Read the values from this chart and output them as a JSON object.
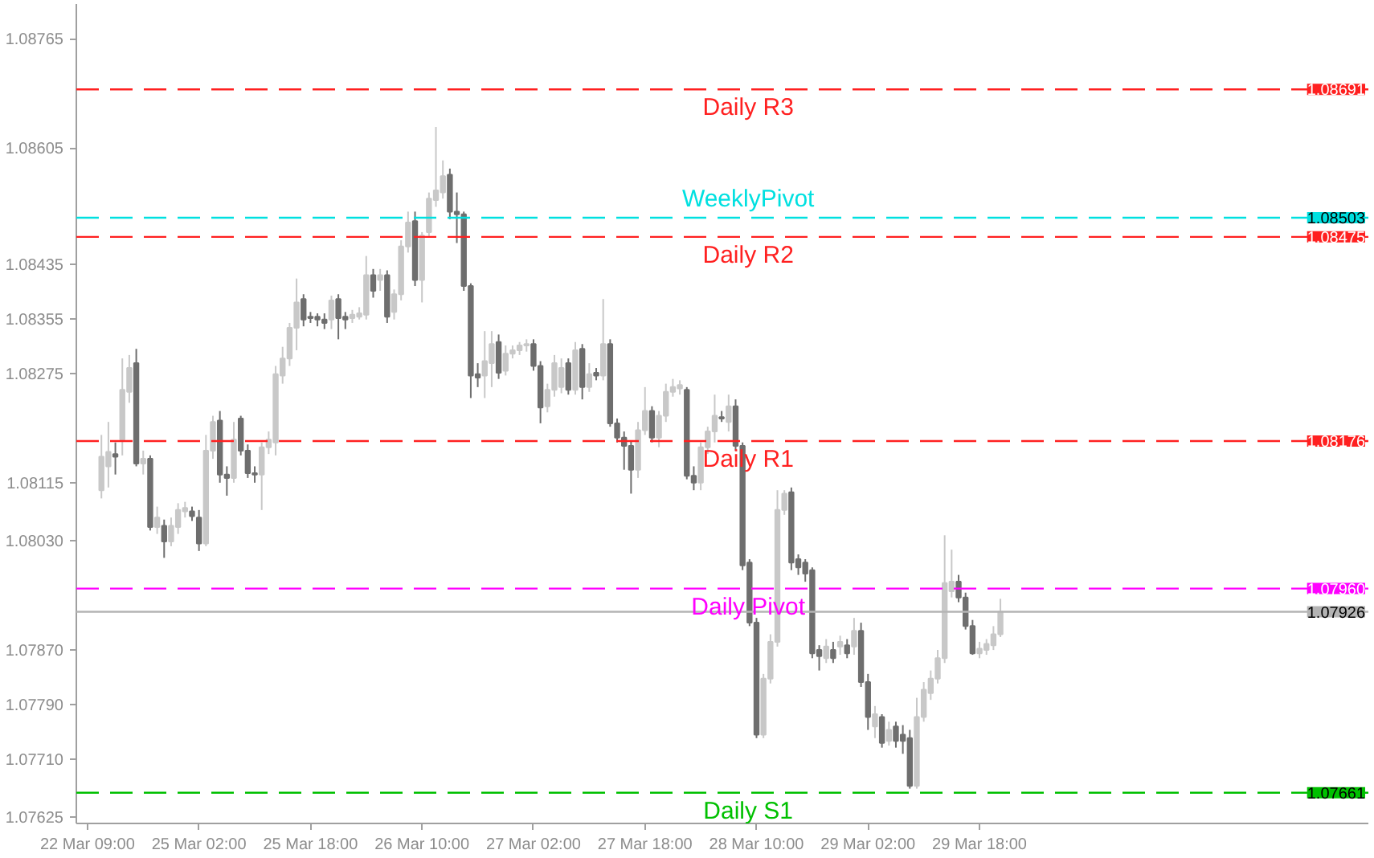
{
  "chart_data": {
    "type": "candlestick",
    "categories": [
      "22 Mar 09:00",
      null,
      null,
      null,
      null,
      null,
      null,
      null,
      null,
      null,
      null,
      null,
      null,
      null,
      null,
      null,
      "25 Mar 02:00",
      null,
      null,
      null,
      null,
      null,
      null,
      null,
      null,
      null,
      null,
      null,
      null,
      null,
      null,
      null,
      "25 Mar 18:00",
      null,
      null,
      null,
      null,
      null,
      null,
      null,
      null,
      null,
      null,
      null,
      null,
      null,
      null,
      null,
      "26 Mar 10:00",
      null,
      null,
      null,
      null,
      null,
      null,
      null,
      null,
      null,
      null,
      null,
      null,
      null,
      null,
      null,
      "27 Mar 02:00",
      null,
      null,
      null,
      null,
      null,
      null,
      null,
      null,
      null,
      null,
      null,
      null,
      null,
      null,
      null,
      "27 Mar 18:00",
      null,
      null,
      null,
      null,
      null,
      null,
      null,
      null,
      null,
      null,
      null,
      null,
      null,
      null,
      null,
      "28 Mar 10:00",
      null,
      null,
      null,
      null,
      null,
      null,
      null,
      null,
      null,
      null,
      null,
      null,
      null,
      null,
      null,
      "29 Mar 02:00",
      null,
      null,
      null,
      null,
      null,
      null,
      null,
      null,
      null,
      null,
      null,
      null,
      null,
      null,
      null,
      "29 Mar 18:00",
      null,
      null,
      null
    ],
    "ohlc": [
      null,
      null,
      [
        1.08104,
        1.08185,
        1.08092,
        1.08153
      ],
      [
        1.08139,
        1.08204,
        1.08108,
        1.0816
      ],
      [
        1.08157,
        1.08174,
        1.08127,
        1.08153
      ],
      [
        1.08178,
        1.08297,
        1.08155,
        1.08251
      ],
      [
        1.08248,
        1.08302,
        1.08232,
        1.08283
      ],
      [
        1.0829,
        1.08311,
        1.08139,
        1.08143
      ],
      [
        1.08143,
        1.08162,
        1.08127,
        1.0815
      ],
      [
        1.0815,
        1.08155,
        1.08045,
        1.0805
      ],
      [
        1.0805,
        1.0808,
        1.0804,
        1.08064
      ],
      [
        1.08052,
        1.08061,
        1.08005,
        1.08029
      ],
      [
        1.08029,
        1.08064,
        1.08022,
        1.08052
      ],
      [
        1.0805,
        1.08085,
        1.0804,
        1.08075
      ],
      [
        1.08073,
        1.08087,
        1.08064,
        1.08078
      ],
      [
        1.08073,
        1.0808,
        1.08059,
        1.08066
      ],
      [
        1.08064,
        1.08075,
        1.08015,
        1.08026
      ],
      [
        1.08026,
        1.08185,
        1.08022,
        1.08162
      ],
      [
        1.08162,
        1.08213,
        1.0815,
        1.08204
      ],
      [
        1.08206,
        1.0822,
        1.08115,
        1.08127
      ],
      [
        1.08127,
        1.08139,
        1.08096,
        1.08122
      ],
      [
        1.08122,
        1.08204,
        1.08115,
        1.08178
      ],
      [
        1.08209,
        1.08213,
        1.08155,
        1.08162
      ],
      [
        1.08162,
        1.08171,
        1.08122,
        1.08129
      ],
      [
        1.08129,
        1.08139,
        1.08115,
        1.08127
      ],
      [
        1.08127,
        1.08174,
        1.08075,
        1.08167
      ],
      [
        1.08167,
        1.0819,
        1.08157,
        1.08178
      ],
      [
        1.08174,
        1.08286,
        1.08155,
        1.08274
      ],
      [
        1.08272,
        1.08314,
        1.0826,
        1.08297
      ],
      [
        1.08297,
        1.08349,
        1.08286,
        1.08342
      ],
      [
        1.08342,
        1.08414,
        1.08309,
        1.08379
      ],
      [
        1.08384,
        1.08391,
        1.08344,
        1.08354
      ],
      [
        1.08358,
        1.08365,
        1.08349,
        1.08356
      ],
      [
        1.08358,
        1.08363,
        1.08344,
        1.08354
      ],
      [
        1.08354,
        1.08363,
        1.0834,
        1.08349
      ],
      [
        1.08354,
        1.08389,
        1.0834,
        1.08382
      ],
      [
        1.08384,
        1.08391,
        1.08325,
        1.08356
      ],
      [
        1.08358,
        1.08365,
        1.0834,
        1.08354
      ],
      [
        1.08356,
        1.08368,
        1.08349,
        1.08361
      ],
      [
        1.08358,
        1.08372,
        1.08354,
        1.08363
      ],
      [
        1.08361,
        1.08447,
        1.08354,
        1.08419
      ],
      [
        1.08419,
        1.08428,
        1.08386,
        1.08396
      ],
      [
        1.08412,
        1.08428,
        1.08396,
        1.08419
      ],
      [
        1.08419,
        1.08426,
        1.08349,
        1.08358
      ],
      [
        1.08365,
        1.08398,
        1.08354,
        1.08391
      ],
      [
        1.08391,
        1.0847,
        1.08382,
        1.08461
      ],
      [
        1.08461,
        1.08512,
        1.08452,
        1.08496
      ],
      [
        1.08498,
        1.08512,
        1.08403,
        1.08412
      ],
      [
        1.08412,
        1.08482,
        1.08379,
        1.08477
      ],
      [
        1.08482,
        1.0854,
        1.08475,
        1.08531
      ],
      [
        1.08529,
        1.08636,
        1.08519,
        1.08543
      ],
      [
        1.0854,
        1.08587,
        1.08531,
        1.08564
      ],
      [
        1.08566,
        1.08575,
        1.08501,
        1.08512
      ],
      [
        1.08512,
        1.0854,
        1.08466,
        1.08508
      ],
      [
        1.08508,
        1.08512,
        1.08396,
        1.08403
      ],
      [
        1.08403,
        1.08407,
        1.08239,
        1.08272
      ],
      [
        1.08274,
        1.0829,
        1.08255,
        1.08269
      ],
      [
        1.08272,
        1.08337,
        1.08239,
        1.08293
      ],
      [
        1.0829,
        1.08337,
        1.08255,
        1.08318
      ],
      [
        1.08321,
        1.08332,
        1.08267,
        1.08276
      ],
      [
        1.08279,
        1.08316,
        1.08272,
        1.08304
      ],
      [
        1.08304,
        1.08316,
        1.08297,
        1.08309
      ],
      [
        1.08309,
        1.08321,
        1.08302,
        1.08316
      ],
      [
        1.08316,
        1.08325,
        1.08307,
        1.08318
      ],
      [
        1.08318,
        1.08325,
        1.08279,
        1.08286
      ],
      [
        1.08286,
        1.08293,
        1.08202,
        1.08225
      ],
      [
        1.08227,
        1.0826,
        1.08218,
        1.08251
      ],
      [
        1.08251,
        1.08302,
        1.08241,
        1.0829
      ],
      [
        1.08255,
        1.08297,
        1.08246,
        1.08283
      ],
      [
        1.0829,
        1.08297,
        1.08244,
        1.08251
      ],
      [
        1.08251,
        1.08321,
        1.08244,
        1.08309
      ],
      [
        1.08311,
        1.08318,
        1.08237,
        1.08255
      ],
      [
        1.08255,
        1.0829,
        1.08248,
        1.08274
      ],
      [
        1.08276,
        1.08283,
        1.08265,
        1.08272
      ],
      [
        1.08272,
        1.08384,
        1.08265,
        1.08318
      ],
      [
        1.08318,
        1.08325,
        1.08197,
        1.08202
      ],
      [
        1.08202,
        1.08209,
        1.08174,
        1.08181
      ],
      [
        1.08181,
        1.0819,
        1.08134,
        1.08169
      ],
      [
        1.08169,
        1.08176,
        1.08099,
        1.08134
      ],
      [
        1.08134,
        1.08204,
        1.08122,
        1.08192
      ],
      [
        1.08192,
        1.08255,
        1.08185,
        1.0822
      ],
      [
        1.0822,
        1.08227,
        1.08174,
        1.08181
      ],
      [
        1.08181,
        1.0822,
        1.08167,
        1.08213
      ],
      [
        1.08213,
        1.0826,
        1.08204,
        1.08248
      ],
      [
        1.08248,
        1.08267,
        1.08241,
        1.08255
      ],
      [
        1.08253,
        1.08265,
        1.08244,
        1.08258
      ],
      [
        1.08251,
        1.08255,
        1.0812,
        1.08125
      ],
      [
        1.08125,
        1.08139,
        1.08104,
        1.08115
      ],
      [
        1.08115,
        1.08174,
        1.08104,
        1.08167
      ],
      [
        1.08167,
        1.08197,
        1.08157,
        1.0819
      ],
      [
        1.0819,
        1.08244,
        1.08174,
        1.08213
      ],
      [
        1.08211,
        1.0822,
        1.08204,
        1.08209
      ],
      [
        1.08204,
        1.08244,
        1.0819,
        1.08227
      ],
      [
        1.08227,
        1.08237,
        1.08162,
        1.08169
      ],
      [
        1.08169,
        1.08174,
        1.07987,
        1.07994
      ],
      [
        1.07998,
        1.08003,
        1.07905,
        1.0791
      ],
      [
        1.0791,
        1.07917,
        1.07741,
        1.07746
      ],
      [
        1.07746,
        1.07835,
        1.07741,
        1.07828
      ],
      [
        1.07828,
        1.07893,
        1.07821,
        1.07882
      ],
      [
        1.07882,
        1.08104,
        1.07875,
        1.08075
      ],
      [
        1.08075,
        1.08104,
        1.08068,
        1.08099
      ],
      [
        1.08101,
        1.08108,
        1.07987,
        1.07998
      ],
      [
        1.08003,
        1.0801,
        1.0798,
        1.07991
      ],
      [
        1.07998,
        1.08003,
        1.0797,
        1.07982
      ],
      [
        1.07987,
        1.07991,
        1.07858,
        1.07865
      ],
      [
        1.0787,
        1.07877,
        1.0784,
        1.07861
      ],
      [
        1.07858,
        1.07886,
        1.07851,
        1.07875
      ],
      [
        1.0787,
        1.07882,
        1.07851,
        1.07858
      ],
      [
        1.07875,
        1.07891,
        1.07863,
        1.07882
      ],
      [
        1.07877,
        1.07886,
        1.07858,
        1.07865
      ],
      [
        1.07875,
        1.07917,
        1.07863,
        1.07898
      ],
      [
        1.07898,
        1.0791,
        1.07816,
        1.07823
      ],
      [
        1.07823,
        1.07835,
        1.07753,
        1.07772
      ],
      [
        1.07758,
        1.07788,
        1.07741,
        1.07776
      ],
      [
        1.07772,
        1.07776,
        1.07727,
        1.07734
      ],
      [
        1.07737,
        1.07765,
        1.0773,
        1.07753
      ],
      [
        1.07758,
        1.07765,
        1.07727,
        1.07737
      ],
      [
        1.07746,
        1.0776,
        1.07718,
        1.07737
      ],
      [
        1.07741,
        1.07753,
        1.07667,
        1.07671
      ],
      [
        1.07671,
        1.078,
        1.07667,
        1.07772
      ],
      [
        1.07772,
        1.07823,
        1.07765,
        1.07812
      ],
      [
        1.07807,
        1.0784,
        1.07797,
        1.07828
      ],
      [
        1.07828,
        1.0787,
        1.07821,
        1.07858
      ],
      [
        1.07858,
        1.08038,
        1.07851,
        1.07968
      ],
      [
        1.07956,
        1.08017,
        1.07947,
        1.0797
      ],
      [
        1.0797,
        1.0798,
        1.0794,
        1.07947
      ],
      [
        1.07947,
        1.07954,
        1.079,
        1.07905
      ],
      [
        1.07905,
        1.07914,
        1.07863,
        1.07865
      ],
      [
        1.07865,
        1.07882,
        1.07858,
        1.07872
      ],
      [
        1.0787,
        1.07886,
        1.07863,
        1.07879
      ],
      [
        1.07877,
        1.07905,
        1.0787,
        1.07893
      ],
      [
        1.07893,
        1.07945,
        1.07889,
        1.07926
      ]
    ],
    "colors": [
      null,
      null,
      "#c8c8c8",
      "#c8c8c8",
      "#6e6e6e",
      "#c8c8c8",
      "#c8c8c8",
      "#6e6e6e",
      "#c8c8c8",
      "#6e6e6e",
      "#c8c8c8",
      "#6e6e6e",
      "#c8c8c8",
      "#c8c8c8",
      "#c8c8c8",
      "#6e6e6e",
      "#6e6e6e",
      "#c8c8c8",
      "#c8c8c8",
      "#6e6e6e",
      "#6e6e6e",
      "#c8c8c8",
      "#6e6e6e",
      "#6e6e6e",
      "#6e6e6e",
      "#c8c8c8",
      "#c8c8c8",
      "#c8c8c8",
      "#c8c8c8",
      "#c8c8c8",
      "#c8c8c8",
      "#6e6e6e",
      "#6e6e6e",
      "#6e6e6e",
      "#6e6e6e",
      "#c8c8c8",
      "#6e6e6e",
      "#6e6e6e",
      "#c8c8c8",
      "#c8c8c8",
      "#c8c8c8",
      "#6e6e6e",
      "#c8c8c8",
      "#6e6e6e",
      "#c8c8c8",
      "#c8c8c8",
      "#c8c8c8",
      "#6e6e6e",
      "#c8c8c8",
      "#c8c8c8",
      "#c8c8c8",
      "#c8c8c8",
      "#6e6e6e",
      "#6e6e6e",
      "#6e6e6e",
      "#6e6e6e",
      "#6e6e6e",
      "#c8c8c8",
      "#c8c8c8",
      "#6e6e6e",
      "#c8c8c8",
      "#c8c8c8",
      "#c8c8c8",
      "#c8c8c8",
      "#6e6e6e",
      "#6e6e6e",
      "#c8c8c8",
      "#c8c8c8",
      "#c8c8c8",
      "#6e6e6e",
      "#c8c8c8",
      "#6e6e6e",
      "#c8c8c8",
      "#6e6e6e",
      "#c8c8c8",
      "#6e6e6e",
      "#6e6e6e",
      "#6e6e6e",
      "#6e6e6e",
      "#c8c8c8",
      "#c8c8c8",
      "#6e6e6e",
      "#c8c8c8",
      "#c8c8c8",
      "#c8c8c8",
      "#c8c8c8",
      "#6e6e6e",
      "#6e6e6e",
      "#c8c8c8",
      "#c8c8c8",
      "#c8c8c8",
      "#6e6e6e",
      "#c8c8c8",
      "#6e6e6e",
      "#6e6e6e",
      "#6e6e6e",
      "#6e6e6e",
      "#c8c8c8",
      "#c8c8c8",
      "#c8c8c8",
      "#c8c8c8",
      "#6e6e6e",
      "#6e6e6e",
      "#6e6e6e",
      "#6e6e6e",
      "#6e6e6e",
      "#c8c8c8",
      "#6e6e6e",
      "#c8c8c8",
      "#6e6e6e",
      "#c8c8c8",
      "#6e6e6e",
      "#6e6e6e",
      "#c8c8c8",
      "#6e6e6e",
      "#c8c8c8",
      "#6e6e6e",
      "#6e6e6e",
      "#6e6e6e",
      "#c8c8c8",
      "#c8c8c8",
      "#c8c8c8",
      "#c8c8c8",
      "#c8c8c8",
      "#c8c8c8",
      "#6e6e6e",
      "#6e6e6e",
      "#6e6e6e",
      "#c8c8c8",
      "#c8c8c8",
      "#c8c8c8",
      "#c8c8c8"
    ],
    "ylim": [
      1.07616,
      1.08816
    ],
    "yticks": [
      1.07625,
      {
        "value": 1.0771,
        "label": "1.07710"
      },
      {
        "value": 1.0779,
        "label": "1.07790"
      },
      {
        "value": 1.0787,
        "label": "1.07870"
      },
      {
        "value": 1.0803,
        "label": "1.08030"
      },
      1.08115,
      1.08275,
      1.08355,
      1.08435,
      1.08605,
      1.08765
    ],
    "ref_lines": [
      {
        "axis": "y",
        "value": 1.08691,
        "label": "Daily R3",
        "color": "#ff2020",
        "line_style": "dashed"
      },
      {
        "axis": "y",
        "value": 1.08503,
        "label": "WeeklyPivot",
        "color": "#00e0e0",
        "line_style": "dashed"
      },
      {
        "axis": "y",
        "value": 1.08475,
        "label": "Daily R2",
        "color": "#ff2020",
        "line_style": "dashed"
      },
      {
        "axis": "y",
        "value": 1.08176,
        "label": "Daily R1",
        "color": "#ff2020",
        "line_style": "dashed"
      },
      {
        "axis": "y",
        "value": 1.0796,
        "label": "Daily Pivot",
        "color": "#ff00ff",
        "line_style": "dashed"
      },
      {
        "axis": "y",
        "value": 1.07926,
        "color": "#b4b4b4",
        "line_style": "solid"
      },
      {
        "axis": "y",
        "value": 1.07661,
        "label": "Daily S1",
        "color": "#00c000",
        "line_style": "dashed"
      }
    ],
    "annotations": [
      {
        "text": "1.08691",
        "y": 1.08691
      },
      {
        "text": "1.08503",
        "y": 1.08503
      },
      {
        "text": "1.08475",
        "y": 1.08475
      },
      {
        "text": "1.08176",
        "y": 1.08176
      },
      {
        "text": "1.07960",
        "y": 1.0796
      },
      {
        "text": "1.07926",
        "y": 1.07926
      },
      {
        "text": "1.07661",
        "y": 1.07661
      }
    ]
  }
}
